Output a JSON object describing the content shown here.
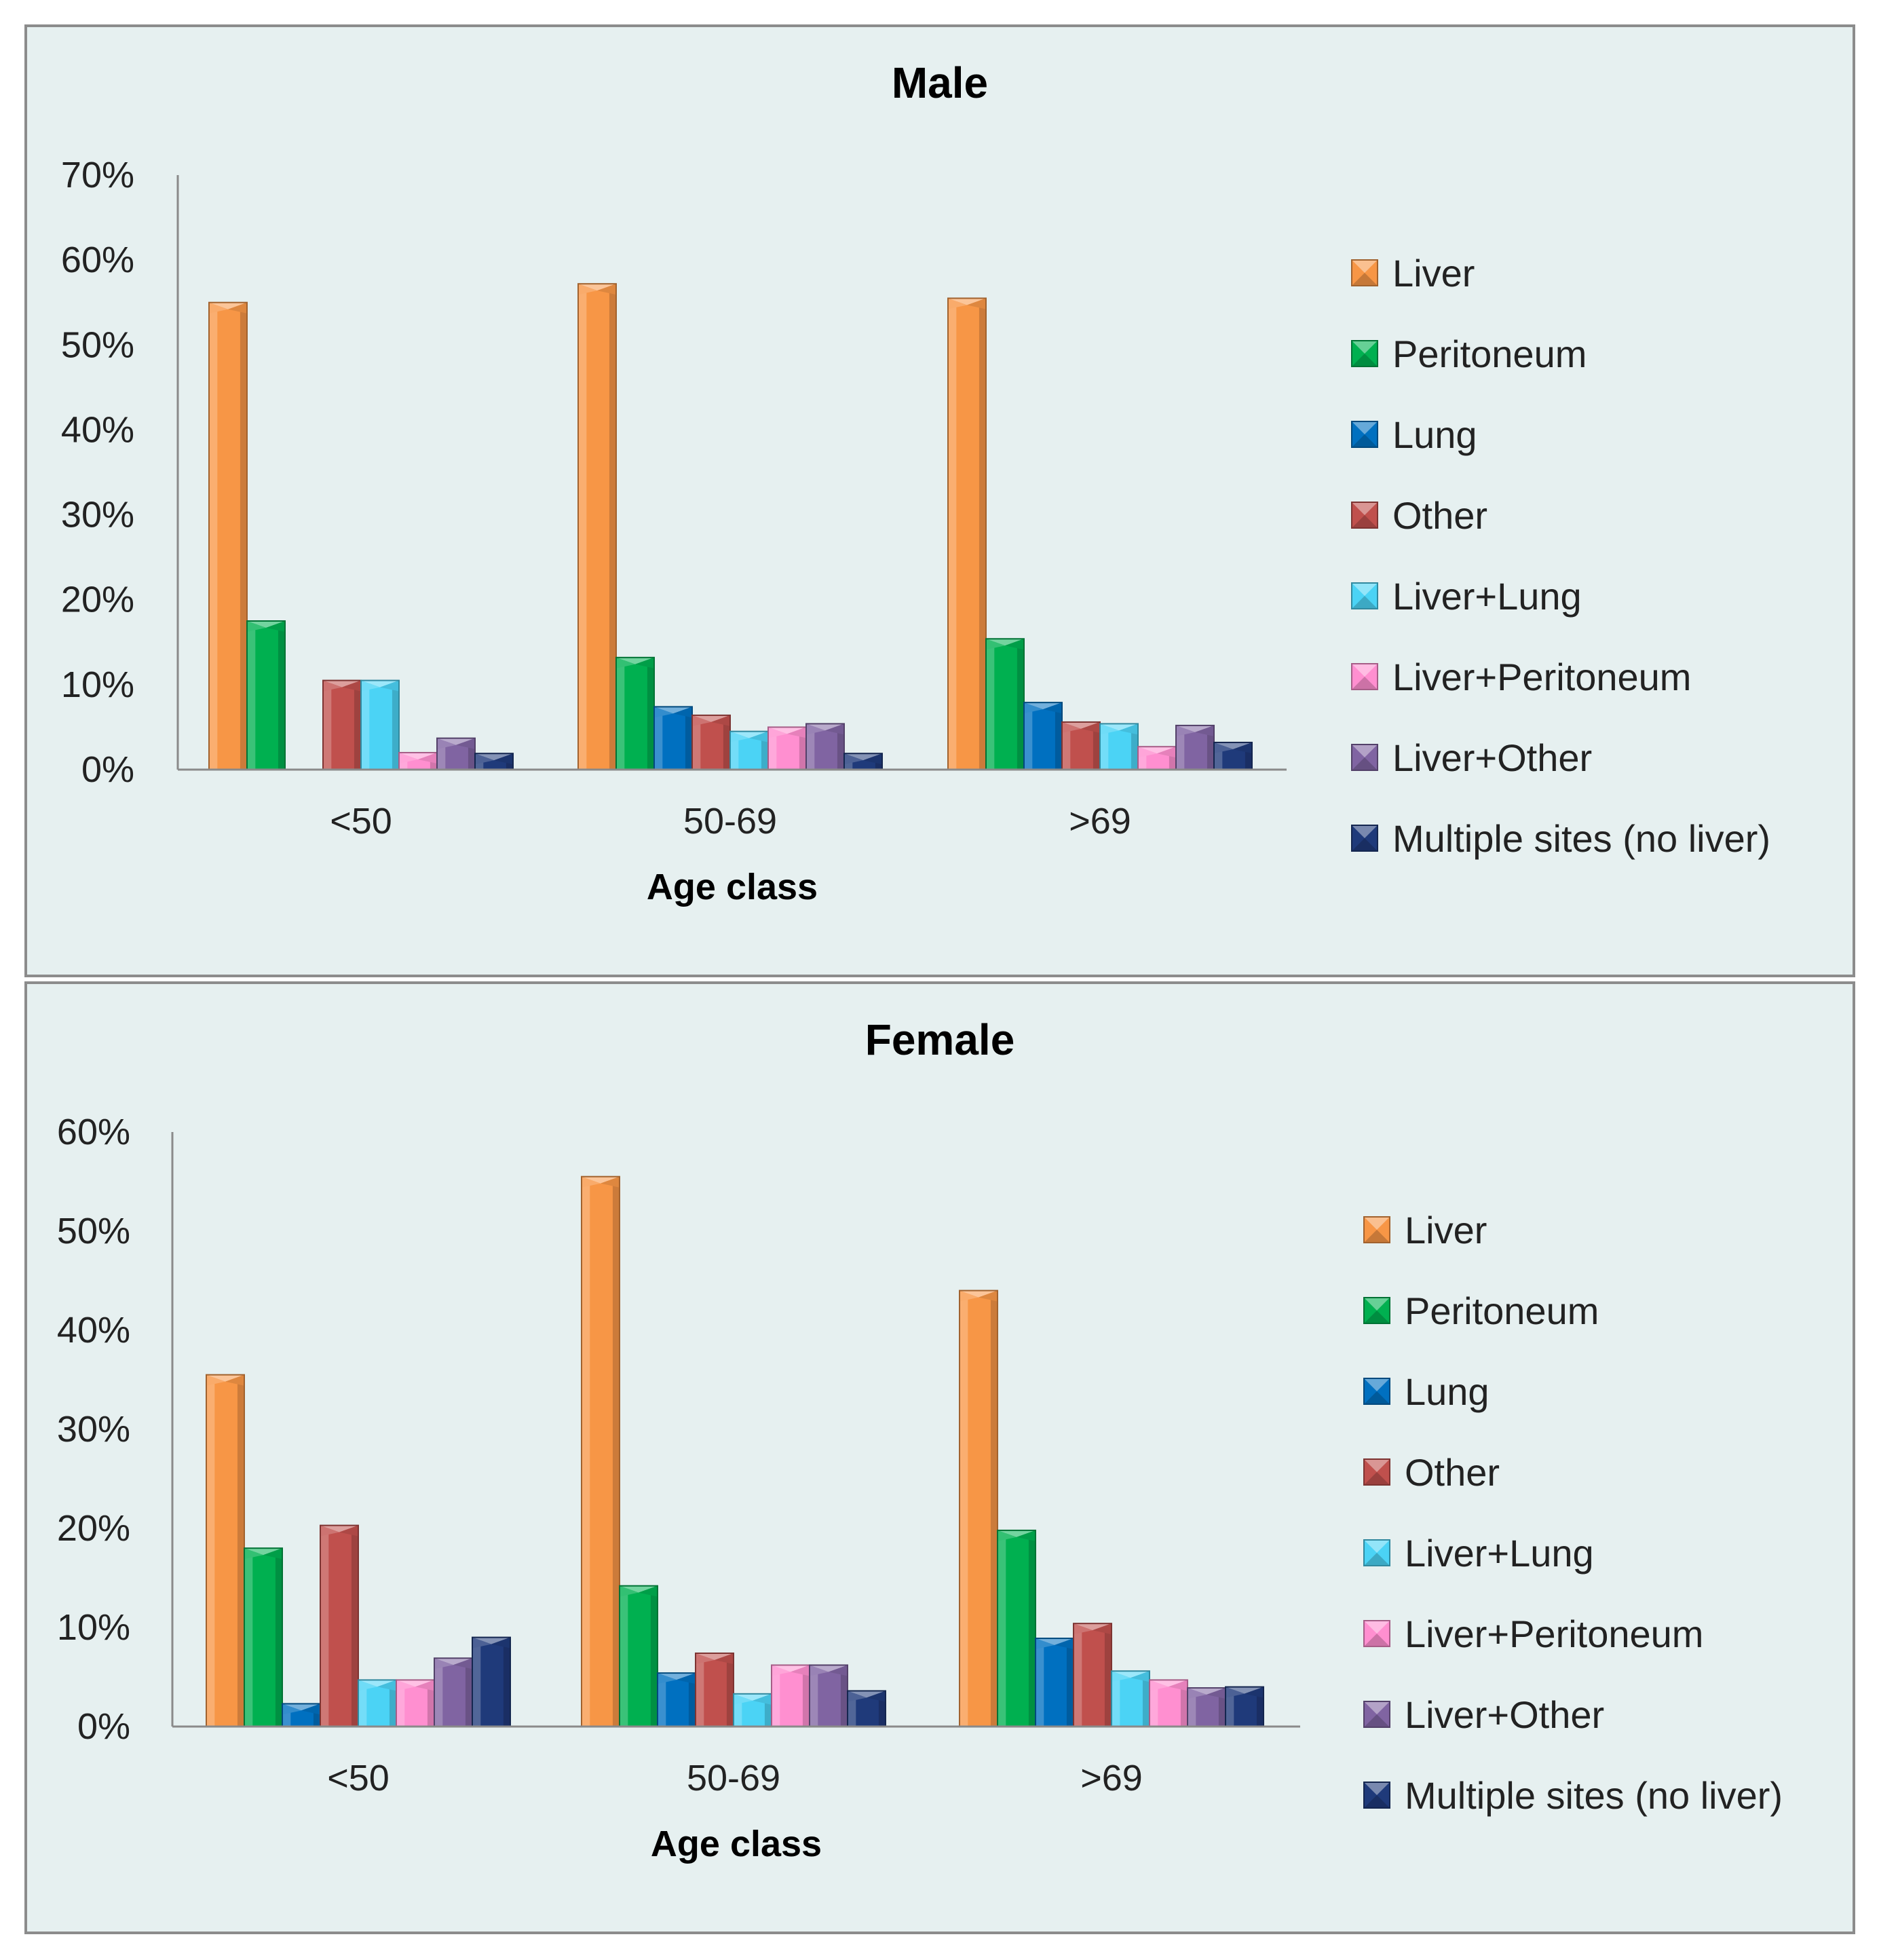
{
  "chart_data": [
    {
      "type": "bar",
      "title": "Male",
      "xlabel": "Age class",
      "ylabel": "",
      "ylim": [
        0,
        70
      ],
      "yticks": [
        "0%",
        "10%",
        "20%",
        "30%",
        "40%",
        "50%",
        "60%",
        "70%"
      ],
      "categories": [
        "<50",
        "50-69",
        ">69"
      ],
      "legend_position": "right",
      "series": [
        {
          "name": "Liver",
          "color": "#f79646",
          "values": [
            55,
            57.2,
            55.5
          ]
        },
        {
          "name": "Peritoneum",
          "color": "#00b050",
          "values": [
            17.5,
            13.2,
            15.4
          ]
        },
        {
          "name": "Lung",
          "color": "#0070c0",
          "values": [
            0,
            7.4,
            7.9
          ]
        },
        {
          "name": "Other",
          "color": "#c0504d",
          "values": [
            10.5,
            6.4,
            5.6
          ]
        },
        {
          "name": "Liver+Lung",
          "color": "#4bd3f5",
          "values": [
            10.5,
            4.5,
            5.4
          ]
        },
        {
          "name": "Liver+Peritoneum",
          "color": "#ff8fd0",
          "values": [
            2,
            5,
            2.7
          ]
        },
        {
          "name": "Liver+Other",
          "color": "#8064a2",
          "values": [
            3.7,
            5.4,
            5.2
          ]
        },
        {
          "name": "Multiple sites (no liver)",
          "color": "#1f3a7a",
          "values": [
            1.9,
            1.9,
            3.2
          ]
        }
      ]
    },
    {
      "type": "bar",
      "title": "Female",
      "xlabel": "Age class",
      "ylabel": "",
      "ylim": [
        0,
        60
      ],
      "yticks": [
        "0%",
        "10%",
        "20%",
        "30%",
        "40%",
        "50%",
        "60%"
      ],
      "categories": [
        "<50",
        "50-69",
        ">69"
      ],
      "legend_position": "right",
      "series": [
        {
          "name": "Liver",
          "color": "#f79646",
          "values": [
            35.5,
            55.5,
            44
          ]
        },
        {
          "name": "Peritoneum",
          "color": "#00b050",
          "values": [
            18,
            14.2,
            19.8
          ]
        },
        {
          "name": "Lung",
          "color": "#0070c0",
          "values": [
            2.3,
            5.4,
            8.9
          ]
        },
        {
          "name": "Other",
          "color": "#c0504d",
          "values": [
            20.3,
            7.4,
            10.4
          ]
        },
        {
          "name": "Liver+Lung",
          "color": "#4bd3f5",
          "values": [
            4.7,
            3.3,
            5.6
          ]
        },
        {
          "name": "Liver+Peritoneum",
          "color": "#ff8fd0",
          "values": [
            4.7,
            6.2,
            4.7
          ]
        },
        {
          "name": "Liver+Other",
          "color": "#8064a2",
          "values": [
            6.9,
            6.2,
            3.9
          ]
        },
        {
          "name": "Multiple sites (no liver)",
          "color": "#1f3a7a",
          "values": [
            9,
            3.6,
            4
          ]
        }
      ]
    }
  ]
}
